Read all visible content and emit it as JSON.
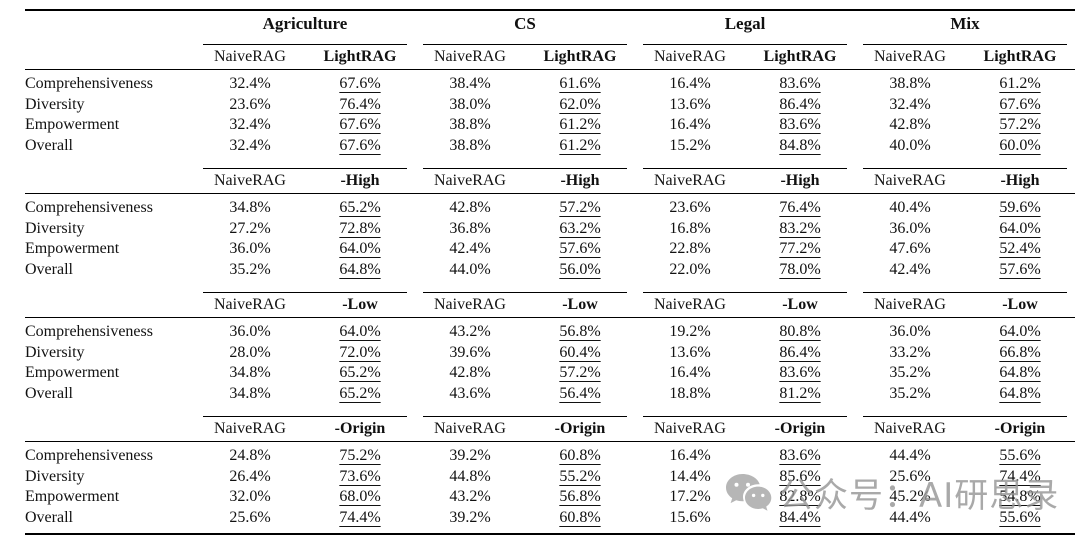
{
  "table": {
    "groups": [
      "Agriculture",
      "CS",
      "Legal",
      "Mix"
    ],
    "baseline_label": "NaiveRAG",
    "metrics": [
      "Comprehensiveness",
      "Diversity",
      "Empowerment",
      "Overall"
    ],
    "sections": [
      {
        "variant_label": "LightRAG",
        "rows": [
          {
            "metric": "Comprehensiveness",
            "values": [
              "32.4%",
              "67.6%",
              "38.4%",
              "61.6%",
              "16.4%",
              "83.6%",
              "38.8%",
              "61.2%"
            ]
          },
          {
            "metric": "Diversity",
            "values": [
              "23.6%",
              "76.4%",
              "38.0%",
              "62.0%",
              "13.6%",
              "86.4%",
              "32.4%",
              "67.6%"
            ]
          },
          {
            "metric": "Empowerment",
            "values": [
              "32.4%",
              "67.6%",
              "38.8%",
              "61.2%",
              "16.4%",
              "83.6%",
              "42.8%",
              "57.2%"
            ]
          },
          {
            "metric": "Overall",
            "values": [
              "32.4%",
              "67.6%",
              "38.8%",
              "61.2%",
              "15.2%",
              "84.8%",
              "40.0%",
              "60.0%"
            ]
          }
        ]
      },
      {
        "variant_label": "-High",
        "rows": [
          {
            "metric": "Comprehensiveness",
            "values": [
              "34.8%",
              "65.2%",
              "42.8%",
              "57.2%",
              "23.6%",
              "76.4%",
              "40.4%",
              "59.6%"
            ]
          },
          {
            "metric": "Diversity",
            "values": [
              "27.2%",
              "72.8%",
              "36.8%",
              "63.2%",
              "16.8%",
              "83.2%",
              "36.0%",
              "64.0%"
            ]
          },
          {
            "metric": "Empowerment",
            "values": [
              "36.0%",
              "64.0%",
              "42.4%",
              "57.6%",
              "22.8%",
              "77.2%",
              "47.6%",
              "52.4%"
            ]
          },
          {
            "metric": "Overall",
            "values": [
              "35.2%",
              "64.8%",
              "44.0%",
              "56.0%",
              "22.0%",
              "78.0%",
              "42.4%",
              "57.6%"
            ]
          }
        ]
      },
      {
        "variant_label": "-Low",
        "rows": [
          {
            "metric": "Comprehensiveness",
            "values": [
              "36.0%",
              "64.0%",
              "43.2%",
              "56.8%",
              "19.2%",
              "80.8%",
              "36.0%",
              "64.0%"
            ]
          },
          {
            "metric": "Diversity",
            "values": [
              "28.0%",
              "72.0%",
              "39.6%",
              "60.4%",
              "13.6%",
              "86.4%",
              "33.2%",
              "66.8%"
            ]
          },
          {
            "metric": "Empowerment",
            "values": [
              "34.8%",
              "65.2%",
              "42.8%",
              "57.2%",
              "16.4%",
              "83.6%",
              "35.2%",
              "64.8%"
            ]
          },
          {
            "metric": "Overall",
            "values": [
              "34.8%",
              "65.2%",
              "43.6%",
              "56.4%",
              "18.8%",
              "81.2%",
              "35.2%",
              "64.8%"
            ]
          }
        ]
      },
      {
        "variant_label": "-Origin",
        "rows": [
          {
            "metric": "Comprehensiveness",
            "values": [
              "24.8%",
              "75.2%",
              "39.2%",
              "60.8%",
              "16.4%",
              "83.6%",
              "44.4%",
              "55.6%"
            ]
          },
          {
            "metric": "Diversity",
            "values": [
              "26.4%",
              "73.6%",
              "44.8%",
              "55.2%",
              "14.4%",
              "85.6%",
              "25.6%",
              "74.4%"
            ]
          },
          {
            "metric": "Empowerment",
            "values": [
              "32.0%",
              "68.0%",
              "43.2%",
              "56.8%",
              "17.2%",
              "82.8%",
              "45.2%",
              "54.8%"
            ]
          },
          {
            "metric": "Overall",
            "values": [
              "25.6%",
              "74.4%",
              "39.2%",
              "60.8%",
              "15.6%",
              "84.4%",
              "44.4%",
              "55.6%"
            ]
          }
        ]
      }
    ]
  },
  "watermark": {
    "text": "公众号：AI研思录",
    "icon": "wechat-icon",
    "color": "#949494"
  }
}
